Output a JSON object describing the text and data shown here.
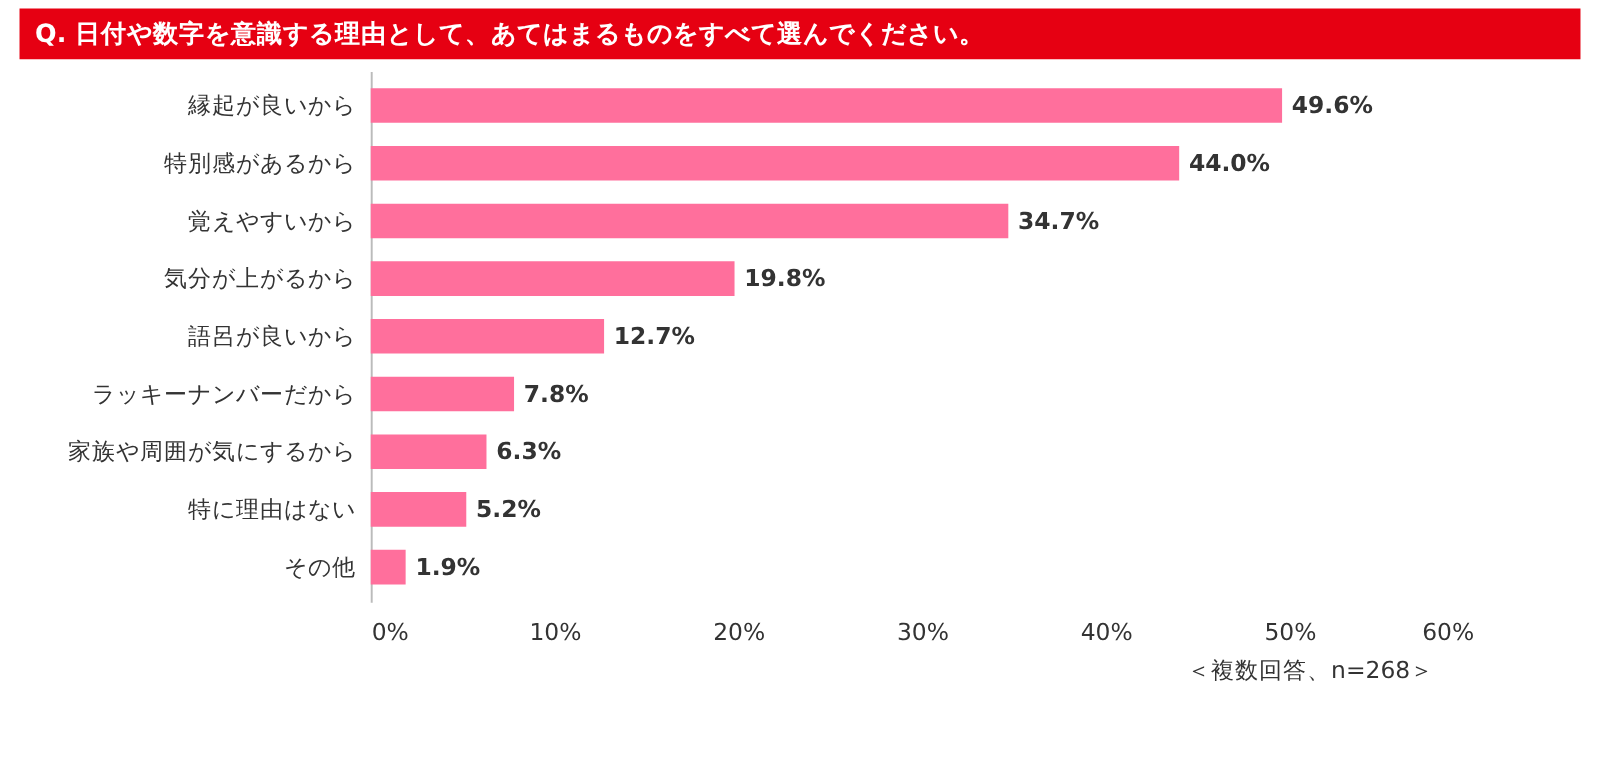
{
  "chart_data": {
    "type": "bar",
    "orientation": "horizontal",
    "title": "Q. 日付や数字を意識する理由として、あてはまるものをすべて選んでください。",
    "categories": [
      "縁起が良いから",
      "特別感があるから",
      "覚えやすいから",
      "気分が上がるから",
      "語呂が良いから",
      "ラッキーナンバーだから",
      "家族や周囲が気にするから",
      "特に理由はない",
      "その他"
    ],
    "values": [
      49.6,
      44.0,
      34.7,
      19.8,
      12.7,
      7.8,
      6.3,
      5.2,
      1.9
    ],
    "value_labels": [
      "49.6%",
      "44.0%",
      "34.7%",
      "19.8%",
      "12.7%",
      "7.8%",
      "6.3%",
      "5.2%",
      "1.9%"
    ],
    "color": "#ff6f9c",
    "xlim": [
      0,
      60
    ],
    "xticks": [
      {
        "value": 0,
        "label": "0%"
      },
      {
        "value": 10,
        "label": "10%"
      },
      {
        "value": 20,
        "label": "20%"
      },
      {
        "value": 30,
        "label": "30%"
      },
      {
        "value": 40,
        "label": "40%"
      },
      {
        "value": 50,
        "label": "50%"
      },
      {
        "value": 60,
        "label": "60%"
      }
    ],
    "grid": false,
    "annotations": [
      "＜複数回答、n=268＞"
    ]
  }
}
